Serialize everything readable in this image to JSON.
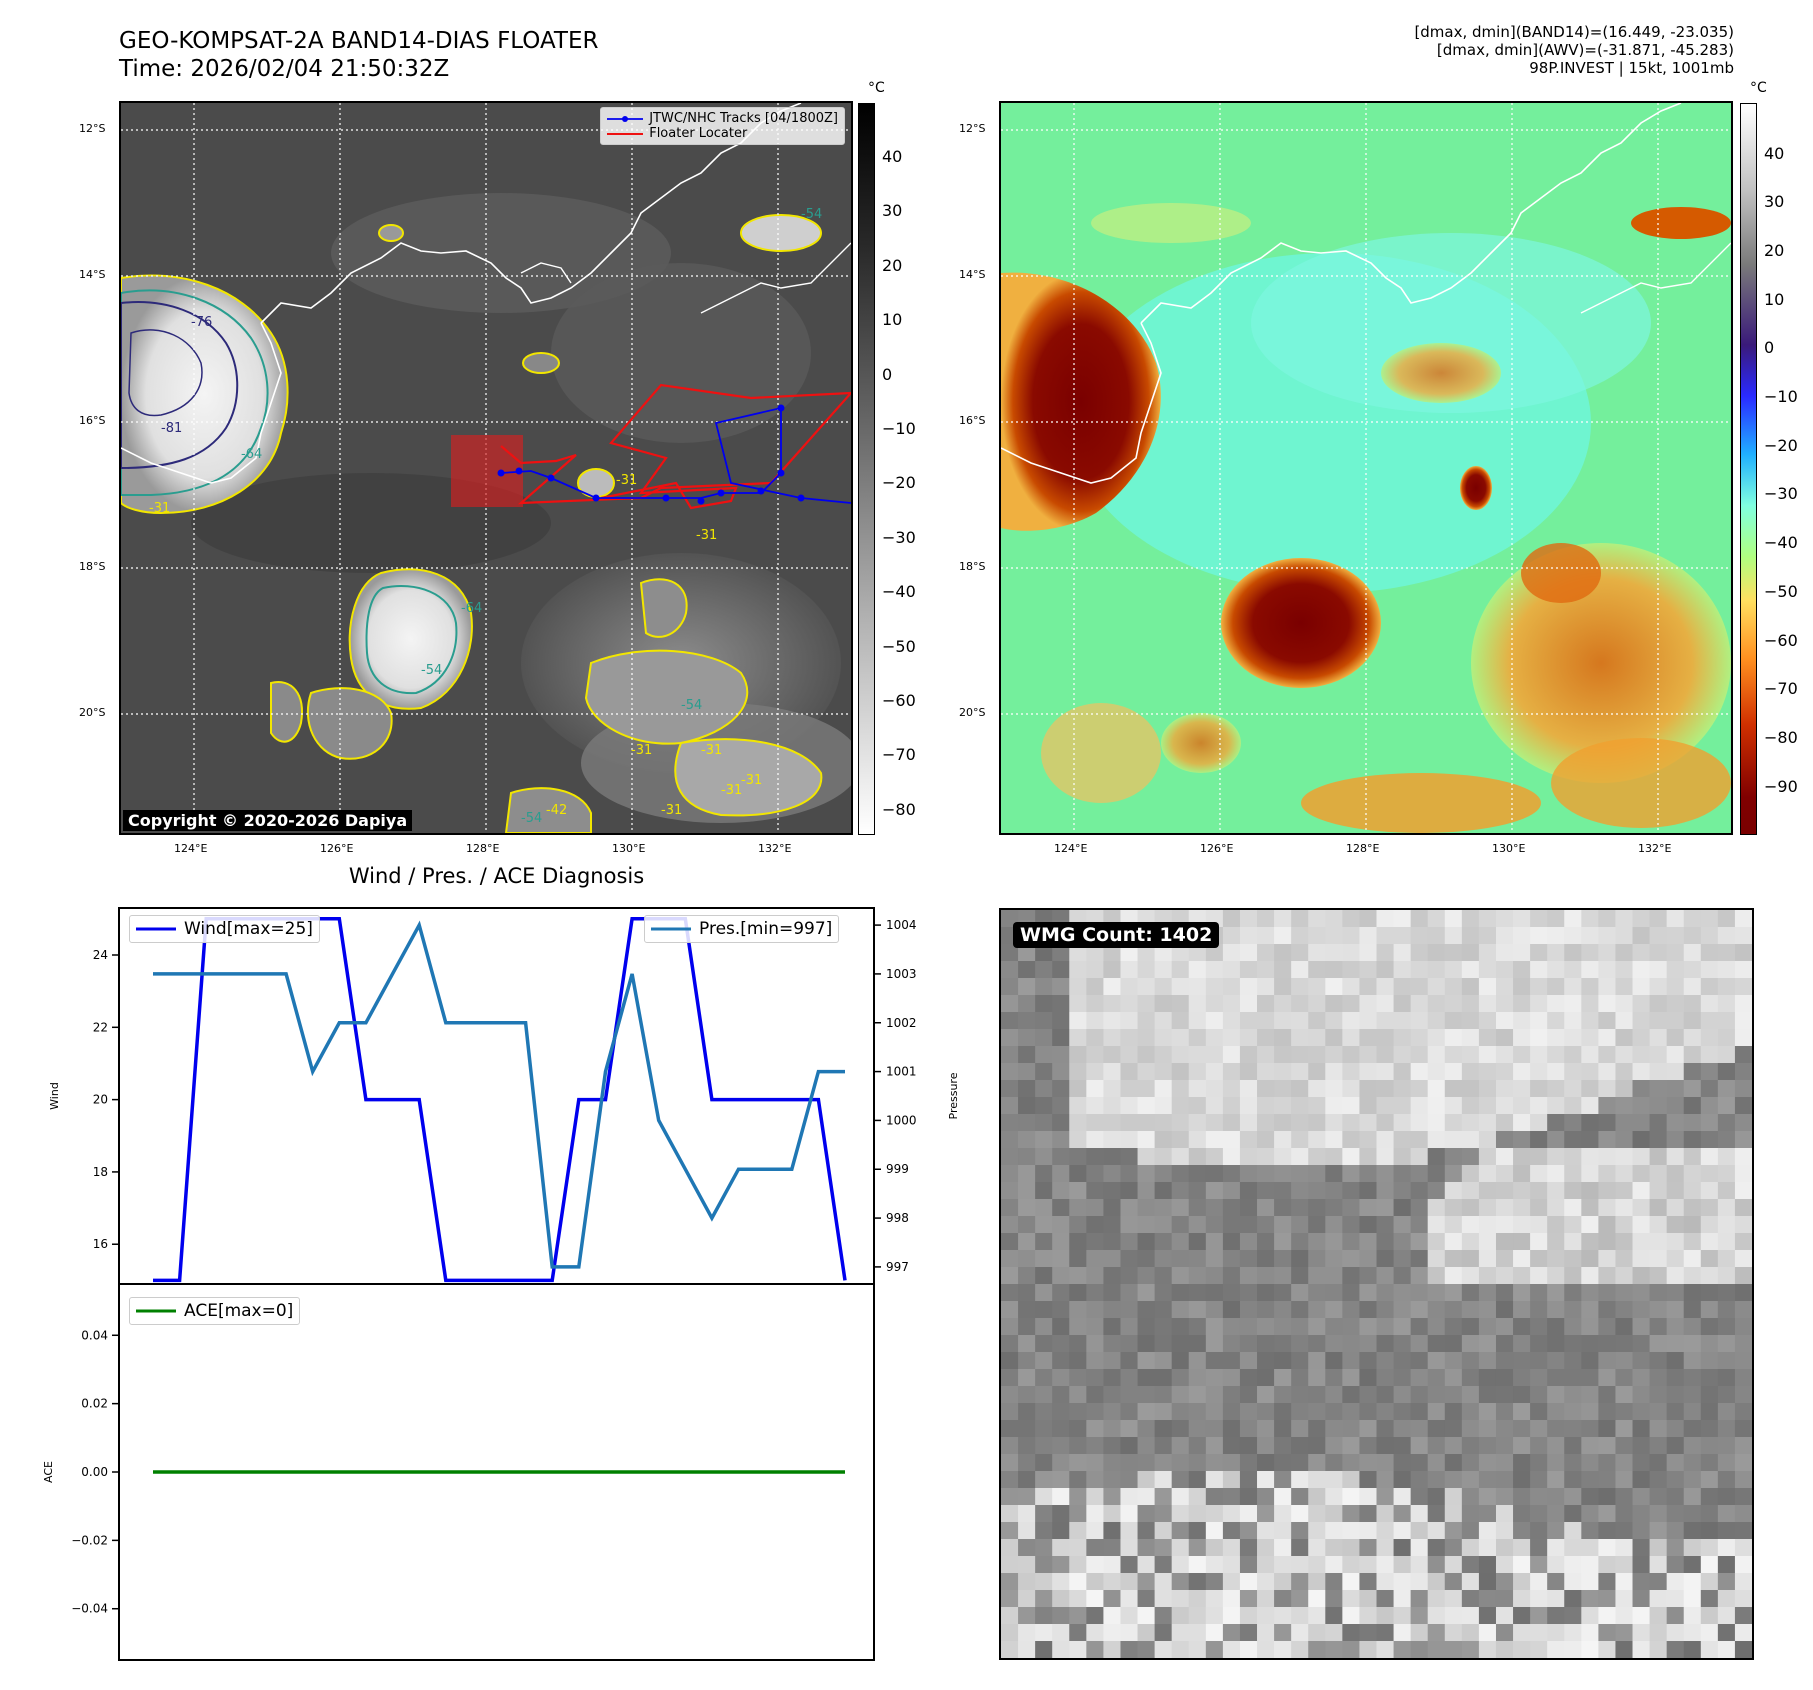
{
  "header": {
    "title_line1": "GEO-KOMPSAT-2A BAND14-DIAS FLOATER",
    "title_line2": "Time: 2026/02/04 21:50:32Z",
    "info_line1": "[dmax, dmin](BAND14)=(16.449, -23.035)",
    "info_line2": "[dmax, dmin](AWV)=(-31.871, -45.283)",
    "info_line3": "98P.INVEST | 15kt, 1001mb"
  },
  "map_left": {
    "lat_labels": [
      "12°S",
      "14°S",
      "16°S",
      "18°S",
      "20°S"
    ],
    "lon_labels": [
      "124°E",
      "126°E",
      "128°E",
      "130°E",
      "132°E"
    ],
    "legend": [
      "JTWC/NHC Tracks [04/1800Z]",
      "Floater Locater"
    ],
    "copyright": "Copyright © 2020-2026 Dapiya",
    "contour_labels": [
      "-76",
      "-81",
      "-64",
      "-31",
      "-54",
      "-54",
      "-31",
      "-31",
      "-31",
      "-31",
      "-42",
      "-54",
      "-64",
      "-31",
      "-54",
      "-31",
      "-31"
    ],
    "colorbar_unit": "°C",
    "colorbar_ticks": [
      "40",
      "30",
      "20",
      "10",
      "0",
      "−10",
      "−20",
      "−30",
      "−40",
      "−50",
      "−60",
      "−70",
      "−80"
    ],
    "colors": {
      "track": "#0000ee",
      "floater": "#ee1111",
      "contour_yellow": "#f2e600",
      "contour_teal": "#2a9d8f",
      "contour_navy": "#2d2a7a"
    }
  },
  "map_right": {
    "lat_labels": [
      "12°S",
      "14°S",
      "16°S",
      "18°S",
      "20°S"
    ],
    "lon_labels": [
      "124°E",
      "126°E",
      "128°E",
      "130°E",
      "132°E"
    ],
    "colorbar_unit": "°C",
    "colorbar_ticks": [
      "40",
      "30",
      "20",
      "10",
      "0",
      "−10",
      "−20",
      "−30",
      "−40",
      "−50",
      "−60",
      "−70",
      "−80",
      "−90"
    ]
  },
  "diagnosis": {
    "title": "Wind / Pres. / ACE Diagnosis",
    "wind_legend": "Wind[max=25]",
    "pres_legend": "Pres.[min=997]",
    "ace_legend": "ACE[max=0]",
    "wind_axis_label": "Wind",
    "pres_axis_label": "Pressure",
    "ace_axis_label": "ACE"
  },
  "wmg": {
    "label": "WMG Count: 1402"
  },
  "chart_data": [
    {
      "type": "line",
      "title": "Wind / Pres. / ACE Diagnosis",
      "ylabel": "Wind",
      "ylabel_right": "Pressure",
      "ylim": [
        14.9,
        25.3
      ],
      "ylim_right": [
        996.65,
        1004.35
      ],
      "yticks": [
        16,
        18,
        20,
        22,
        24
      ],
      "yticks_right": [
        997,
        998,
        999,
        1000,
        1001,
        1002,
        1003,
        1004
      ],
      "series": [
        {
          "name": "Wind[max=25]",
          "color": "#0000ee",
          "axis": "left",
          "values": [
            15,
            15,
            25,
            25,
            25,
            25,
            25,
            25,
            20,
            20,
            20,
            15,
            15,
            15,
            15,
            15,
            20,
            20,
            25,
            25,
            25,
            20,
            20,
            20,
            20,
            20,
            15
          ]
        },
        {
          "name": "Pres.[min=997]",
          "color": "#1f77b4",
          "axis": "right",
          "values": [
            1003,
            1003,
            1003,
            1003,
            1003,
            1003,
            1001,
            1002,
            1002,
            1003,
            1004,
            1002,
            1002,
            1002,
            1002,
            997,
            997,
            1001,
            1003,
            1000,
            999,
            998,
            999,
            999,
            999,
            1001,
            1001
          ]
        }
      ]
    },
    {
      "type": "line",
      "ylabel": "ACE",
      "ylim": [
        -0.055,
        0.055
      ],
      "yticks": [
        -0.04,
        -0.02,
        0.0,
        0.02,
        0.04
      ],
      "series": [
        {
          "name": "ACE[max=0]",
          "color": "#008000",
          "values": [
            0,
            0,
            0,
            0,
            0,
            0,
            0,
            0,
            0,
            0,
            0,
            0,
            0,
            0,
            0,
            0,
            0,
            0,
            0,
            0,
            0,
            0,
            0,
            0,
            0,
            0,
            0
          ]
        }
      ]
    }
  ]
}
